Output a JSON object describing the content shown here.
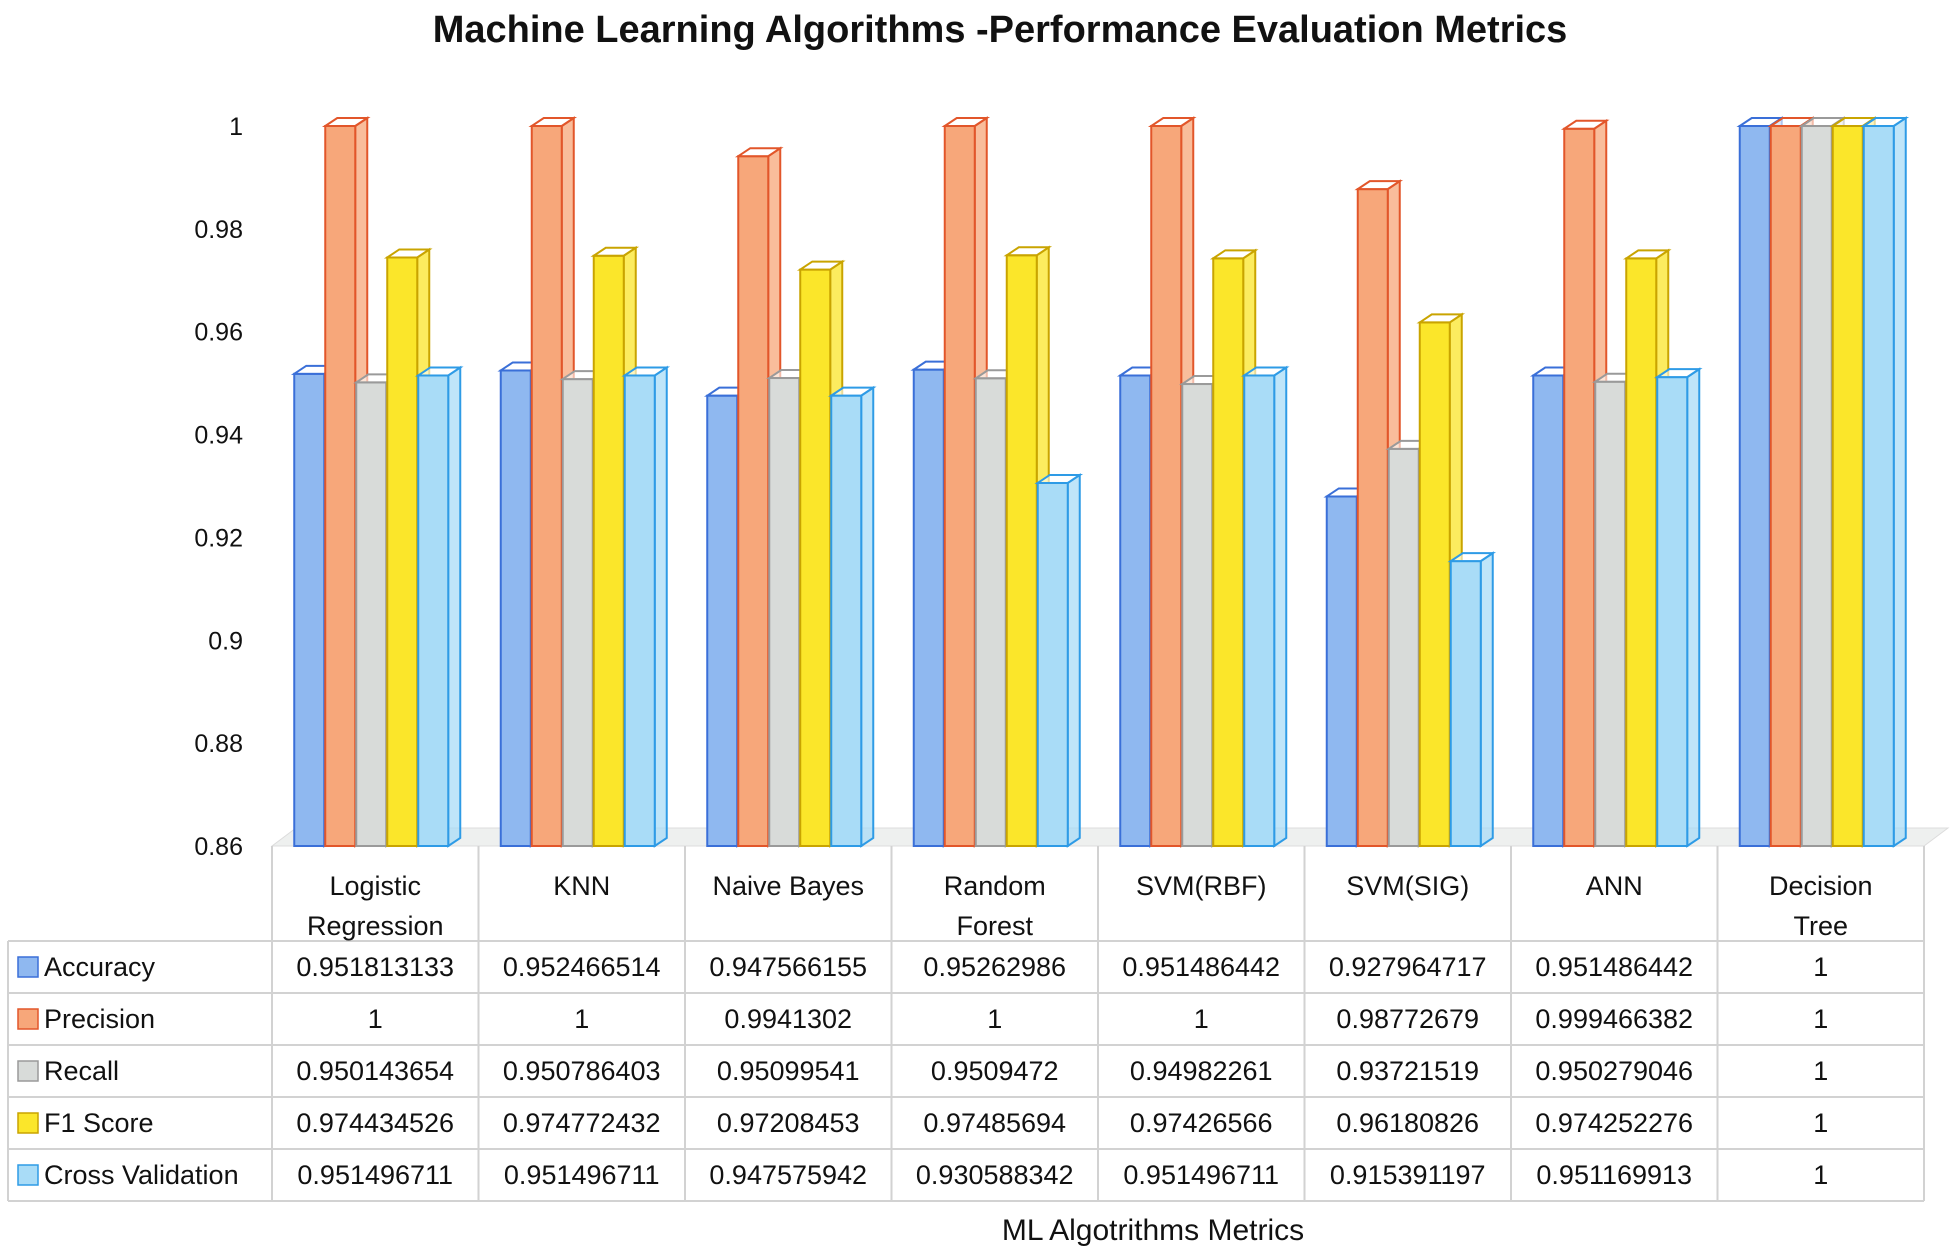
{
  "chart_data": {
    "type": "bar",
    "title": "Machine Learning Algorithms -Performance Evaluation Metrics",
    "xlabel": "ML Algotrithms Metrics",
    "ylabel": "",
    "ylim": [
      0.86,
      1.0
    ],
    "yticks": [
      "0.86",
      "0.88",
      "0.9",
      "0.92",
      "0.94",
      "0.96",
      "0.98",
      "1"
    ],
    "categories": [
      [
        "Logistic",
        "Regression"
      ],
      [
        "KNN"
      ],
      [
        "Naive Bayes"
      ],
      [
        "Random",
        "Forest"
      ],
      [
        "SVM(RBF)"
      ],
      [
        "SVM(SIG)"
      ],
      [
        "ANN"
      ],
      [
        "Decision",
        "Tree"
      ]
    ],
    "series": [
      {
        "name": "Accuracy",
        "color": "#8fb8f0",
        "stroke": "#3a6fd8",
        "values": [
          0.951813133,
          0.952466514,
          0.947566155,
          0.95262986,
          0.951486442,
          0.927964717,
          0.951486442,
          1
        ],
        "labels": [
          "0.951813133",
          "0.952466514",
          "0.947566155",
          "0.95262986",
          "0.951486442",
          "0.927964717",
          "0.951486442",
          "1"
        ]
      },
      {
        "name": "Precision",
        "color": "#f7a77a",
        "stroke": "#e2562a",
        "values": [
          1,
          1,
          0.9941302,
          1,
          1,
          0.98772679,
          0.999466382,
          1
        ],
        "labels": [
          "1",
          "1",
          "0.9941302",
          "1",
          "1",
          "0.98772679",
          "0.999466382",
          "1"
        ]
      },
      {
        "name": "Recall",
        "color": "#d8dbd9",
        "stroke": "#9a9a9a",
        "values": [
          0.950143654,
          0.950786403,
          0.95099541,
          0.9509472,
          0.94982261,
          0.93721519,
          0.950279046,
          1
        ],
        "labels": [
          "0.950143654",
          "0.950786403",
          "0.95099541",
          "0.9509472",
          "0.94982261",
          "0.93721519",
          "0.950279046",
          "1"
        ]
      },
      {
        "name": "F1 Score",
        "color": "#fbe62a",
        "stroke": "#c9a400",
        "values": [
          0.974434526,
          0.974772432,
          0.97208453,
          0.97485694,
          0.97426566,
          0.96180826,
          0.974252276,
          1
        ],
        "labels": [
          "0.974434526",
          "0.974772432",
          "0.97208453",
          "0.97485694",
          "0.97426566",
          "0.96180826",
          "0.974252276",
          "1"
        ]
      },
      {
        "name": "Cross Validation",
        "color": "#a9dcf7",
        "stroke": "#2e9be6",
        "values": [
          0.951496711,
          0.951496711,
          0.947575942,
          0.930588342,
          0.951496711,
          0.915391197,
          0.951169913,
          1
        ],
        "labels": [
          "0.951496711",
          "0.951496711",
          "0.947575942",
          "0.930588342",
          "0.951496711",
          "0.915391197",
          "0.951169913",
          "1"
        ]
      }
    ],
    "grid": false,
    "legend": "data-table"
  }
}
